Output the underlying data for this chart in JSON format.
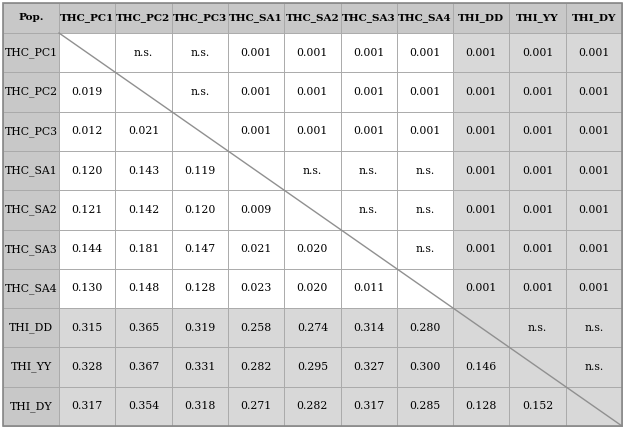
{
  "columns": [
    "Pop.",
    "THC_PC1",
    "THC_PC2",
    "THC_PC3",
    "THC_SA1",
    "THC_SA2",
    "THC_SA3",
    "THC_SA4",
    "THI_DD",
    "THI_YY",
    "THI_DY"
  ],
  "rows": [
    "THC_PC1",
    "THC_PC2",
    "THC_PC3",
    "THC_SA1",
    "THC_SA2",
    "THC_SA3",
    "THC_SA4",
    "THI_DD",
    "THI_YY",
    "THI_DY"
  ],
  "cell_data": [
    [
      "",
      "n.s.",
      "n.s.",
      "0.001",
      "0.001",
      "0.001",
      "0.001",
      "0.001",
      "0.001",
      "0.001"
    ],
    [
      "0.019",
      "",
      "n.s.",
      "0.001",
      "0.001",
      "0.001",
      "0.001",
      "0.001",
      "0.001",
      "0.001"
    ],
    [
      "0.012",
      "0.021",
      "",
      "0.001",
      "0.001",
      "0.001",
      "0.001",
      "0.001",
      "0.001",
      "0.001"
    ],
    [
      "0.120",
      "0.143",
      "0.119",
      "",
      "n.s.",
      "n.s.",
      "n.s.",
      "0.001",
      "0.001",
      "0.001"
    ],
    [
      "0.121",
      "0.142",
      "0.120",
      "0.009",
      "",
      "n.s.",
      "n.s.",
      "0.001",
      "0.001",
      "0.001"
    ],
    [
      "0.144",
      "0.181",
      "0.147",
      "0.021",
      "0.020",
      "",
      "n.s.",
      "0.001",
      "0.001",
      "0.001"
    ],
    [
      "0.130",
      "0.148",
      "0.128",
      "0.023",
      "0.020",
      "0.011",
      "",
      "0.001",
      "0.001",
      "0.001"
    ],
    [
      "0.315",
      "0.365",
      "0.319",
      "0.258",
      "0.274",
      "0.314",
      "0.280",
      "",
      "n.s.",
      "n.s."
    ],
    [
      "0.328",
      "0.367",
      "0.331",
      "0.282",
      "0.295",
      "0.327",
      "0.300",
      "0.146",
      "",
      "n.s."
    ],
    [
      "0.317",
      "0.354",
      "0.318",
      "0.271",
      "0.282",
      "0.317",
      "0.285",
      "0.128",
      "0.152",
      ""
    ]
  ],
  "header_bg": "#c8c8c8",
  "row_header_bg": "#c8c8c8",
  "white_bg": "#ffffff",
  "light_gray_bg": "#d8d8d8",
  "diagonal_color": "#909090",
  "border_color": "#aaaaaa",
  "text_color": "#000000",
  "header_fontsize": 7.5,
  "cell_fontsize": 7.8,
  "row_label_fontsize": 7.8,
  "n_rows": 10,
  "n_cols": 10,
  "thc_count": 7,
  "thi_count": 3
}
